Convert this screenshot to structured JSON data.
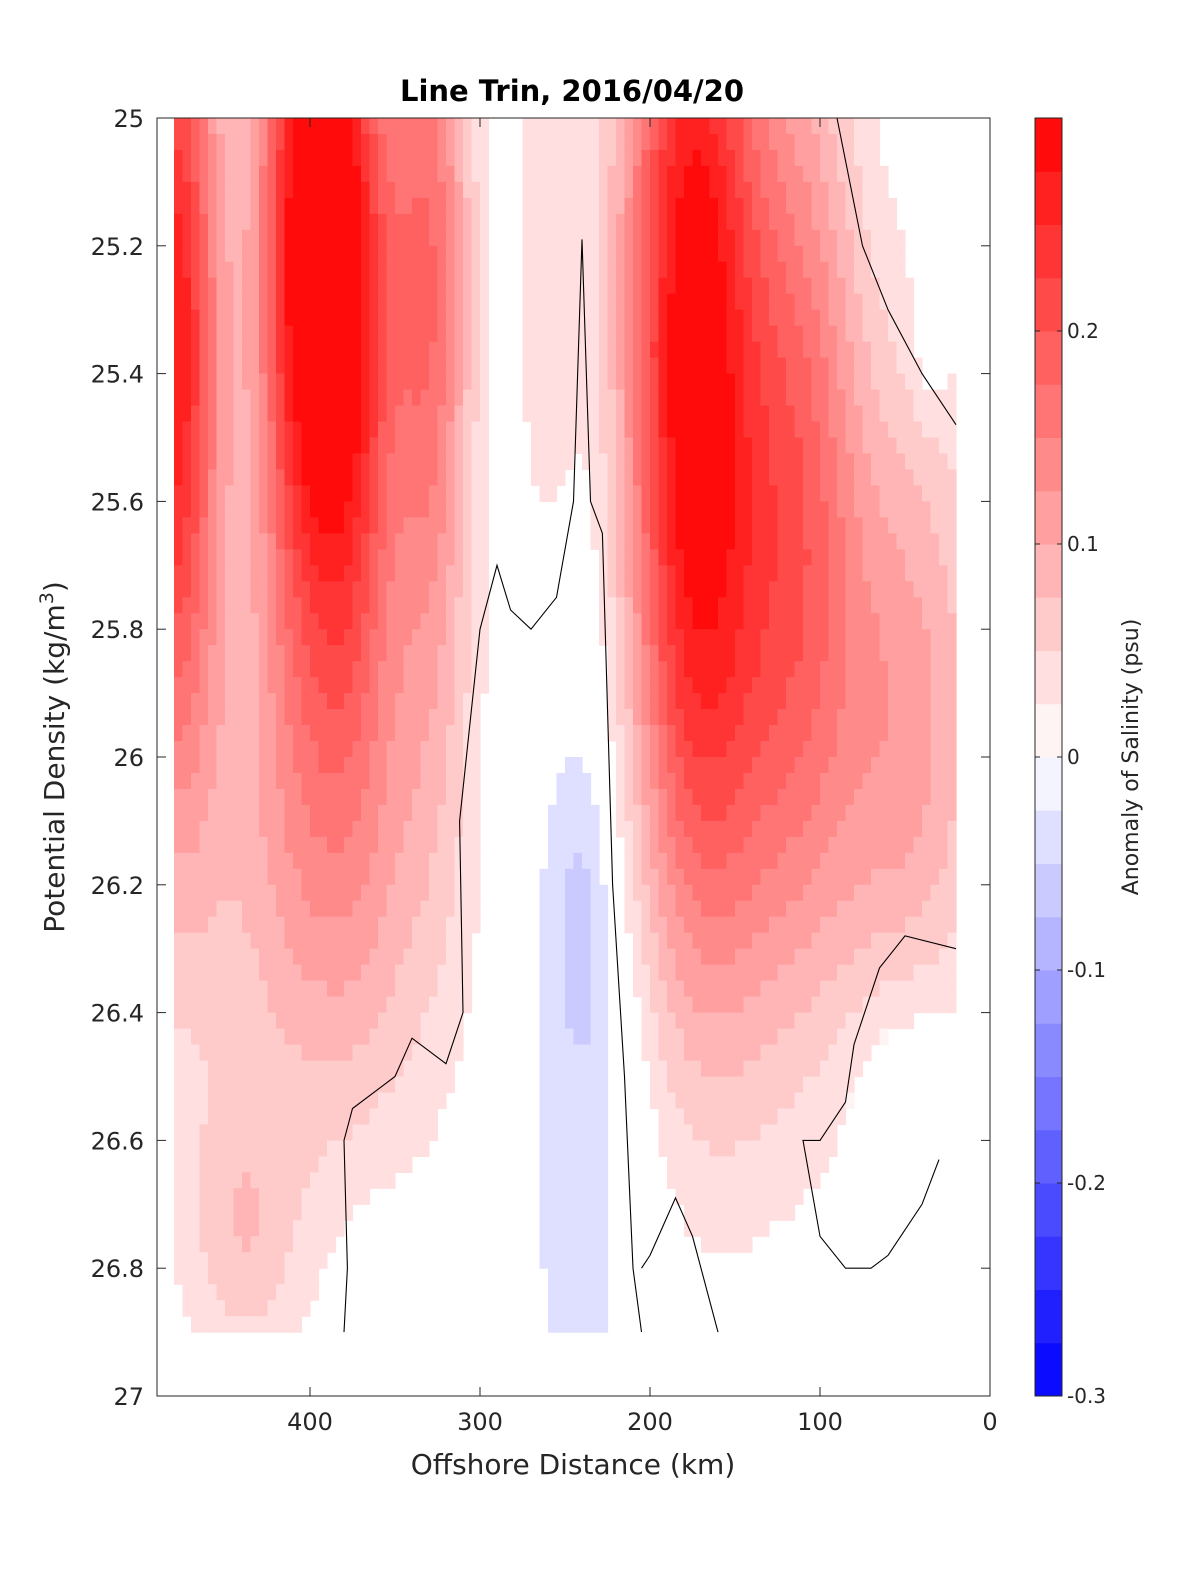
{
  "chart_data": {
    "type": "heatmap",
    "title": "Line Trin, 2016/04/20",
    "xlabel": "Offshore Distance (km)",
    "ylabel": "Potential Density (kg/m",
    "ylabel_sup": "3",
    "ylabel_end": ")",
    "xlim": [
      490,
      0
    ],
    "ylim": [
      25,
      27
    ],
    "y_reversed": true,
    "x_ticks": [
      400,
      300,
      200,
      100,
      0
    ],
    "x_tick_labels": [
      "400",
      "300",
      "200",
      "100",
      "0"
    ],
    "y_ticks": [
      25,
      25.2,
      25.4,
      25.6,
      25.8,
      26,
      26.2,
      26.4,
      26.6,
      26.8,
      27
    ],
    "y_tick_labels": [
      "25",
      "25.2",
      "25.4",
      "25.6",
      "25.8",
      "26",
      "26.2",
      "26.4",
      "26.6",
      "26.8",
      "27"
    ],
    "colorbar": {
      "label": "Anomaly of Salinity (psu)",
      "range": [
        -0.3,
        0.3
      ],
      "levels": 24,
      "ticks": [
        0.2,
        0.1,
        0,
        -0.1,
        -0.2,
        -0.3
      ],
      "tick_labels": [
        "0.2",
        "0.1",
        "0",
        "-0.1",
        "-0.2",
        "-0.3"
      ],
      "max_color": "#ff0000",
      "min_color": "#0000ff",
      "zero_color": "#ffffff"
    },
    "grid": false,
    "data_x_range": [
      480,
      20
    ],
    "data_y_range": [
      25,
      26.9
    ],
    "features": [
      {
        "kind": "positive",
        "x": 480,
        "y": 25.35,
        "value": 0.27,
        "sx": 20,
        "sy": 0.5
      },
      {
        "kind": "positive",
        "x": 405,
        "y": 25.2,
        "value": 0.27,
        "sx": 20,
        "sy": 0.45
      },
      {
        "kind": "positive",
        "x": 375,
        "y": 25.3,
        "value": 0.22,
        "sx": 18,
        "sy": 0.45
      },
      {
        "kind": "positive",
        "x": 390,
        "y": 26.15,
        "value": 0.1,
        "sx": 55,
        "sy": 0.35
      },
      {
        "kind": "positive",
        "x": 330,
        "y": 25.25,
        "value": 0.17,
        "sx": 18,
        "sy": 0.45
      },
      {
        "kind": "positive",
        "x": 260,
        "y": 25.3,
        "value": 0.05,
        "sx": 15,
        "sy": 0.4
      },
      {
        "kind": "positive",
        "x": 175,
        "y": 25.3,
        "value": 0.29,
        "sx": 30,
        "sy": 0.6
      },
      {
        "kind": "positive",
        "x": 150,
        "y": 26.0,
        "value": 0.09,
        "sx": 40,
        "sy": 0.4
      },
      {
        "kind": "positive",
        "x": 110,
        "y": 25.5,
        "value": 0.13,
        "sx": 25,
        "sy": 0.5
      },
      {
        "kind": "positive",
        "x": 50,
        "y": 25.95,
        "value": 0.11,
        "sx": 35,
        "sy": 0.4
      },
      {
        "kind": "positive",
        "x": 440,
        "y": 26.75,
        "value": 0.06,
        "sx": 25,
        "sy": 0.15
      },
      {
        "kind": "negative",
        "x": 240,
        "y": 26.3,
        "value": -0.05,
        "sx": 30,
        "sy": 0.6
      },
      {
        "kind": "negative",
        "x": 240,
        "y": 26.25,
        "value": -0.03,
        "sx": 10,
        "sy": 0.15
      },
      {
        "kind": "negative",
        "x": 50,
        "y": 26.5,
        "value": -0.04,
        "sx": 25,
        "sy": 0.15
      },
      {
        "kind": "negative",
        "x": 35,
        "y": 25.35,
        "value": -0.03,
        "sx": 8,
        "sy": 0.08
      },
      {
        "kind": "negative",
        "x": 360,
        "y": 26.85,
        "value": -0.02,
        "sx": 15,
        "sy": 0.1
      }
    ],
    "zero_contours": [
      [
        [
          380,
          26.9
        ],
        [
          378,
          26.8
        ],
        [
          380,
          26.6
        ],
        [
          375,
          26.55
        ],
        [
          350,
          26.5
        ],
        [
          340,
          26.44
        ],
        [
          320,
          26.48
        ],
        [
          310,
          26.4
        ],
        [
          312,
          26.1
        ],
        [
          300,
          25.8
        ],
        [
          290,
          25.7
        ],
        [
          282,
          25.77
        ],
        [
          270,
          25.8
        ],
        [
          255,
          25.75
        ],
        [
          245,
          25.6
        ],
        [
          240,
          25.19
        ],
        [
          235,
          25.6
        ],
        [
          228,
          25.65
        ],
        [
          222,
          26.2
        ],
        [
          215,
          26.5
        ],
        [
          210,
          26.8
        ],
        [
          205,
          26.9
        ]
      ],
      [
        [
          160,
          26.9
        ],
        [
          175,
          26.75
        ],
        [
          185,
          26.69
        ],
        [
          200,
          26.78
        ],
        [
          205,
          26.8
        ]
      ],
      [
        [
          90,
          25
        ],
        [
          75,
          25.2
        ],
        [
          60,
          25.3
        ],
        [
          40,
          25.4
        ],
        [
          20,
          25.48
        ]
      ],
      [
        [
          20,
          26.3
        ],
        [
          50,
          26.28
        ],
        [
          65,
          26.33
        ],
        [
          80,
          26.45
        ],
        [
          85,
          26.54
        ],
        [
          100,
          26.6
        ],
        [
          110,
          26.6
        ],
        [
          100,
          26.75
        ],
        [
          85,
          26.8
        ],
        [
          70,
          26.8
        ],
        [
          60,
          26.78
        ],
        [
          40,
          26.7
        ],
        [
          30,
          26.63
        ]
      ]
    ]
  }
}
